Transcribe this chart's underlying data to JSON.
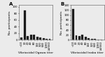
{
  "panel_A": {
    "label": "A",
    "xlabel": "Vibriocidal Ogawa titer",
    "values": [
      8,
      90,
      12,
      16,
      16,
      10,
      7,
      4,
      3,
      2
    ],
    "categories": [
      "<10",
      "10",
      "20",
      "40",
      "80",
      "160",
      "320",
      "640",
      "1280",
      "≥2560"
    ],
    "ylim": [
      0,
      105
    ],
    "yticks": [
      0,
      20,
      40,
      60,
      80,
      100
    ]
  },
  "panel_B": {
    "label": "B",
    "xlabel": "Vibriocidal Inaba titer",
    "values": [
      125,
      18,
      15,
      20,
      13,
      7,
      4,
      3,
      2,
      2
    ],
    "categories": [
      "<10",
      "10",
      "20",
      "40",
      "80",
      "160",
      "320",
      "640",
      "1280",
      "≥2560"
    ],
    "ylim": [
      0,
      140
    ],
    "yticks": [
      0,
      20,
      40,
      60,
      80,
      100,
      120,
      140
    ]
  },
  "ylabel": "No. participants",
  "bar_color": "#1a1a1a",
  "background_color": "#ebebeb",
  "panel_label_fontsize": 5,
  "tick_fontsize": 2.8,
  "label_fontsize": 3.2,
  "ylabel_fontsize": 3.2
}
